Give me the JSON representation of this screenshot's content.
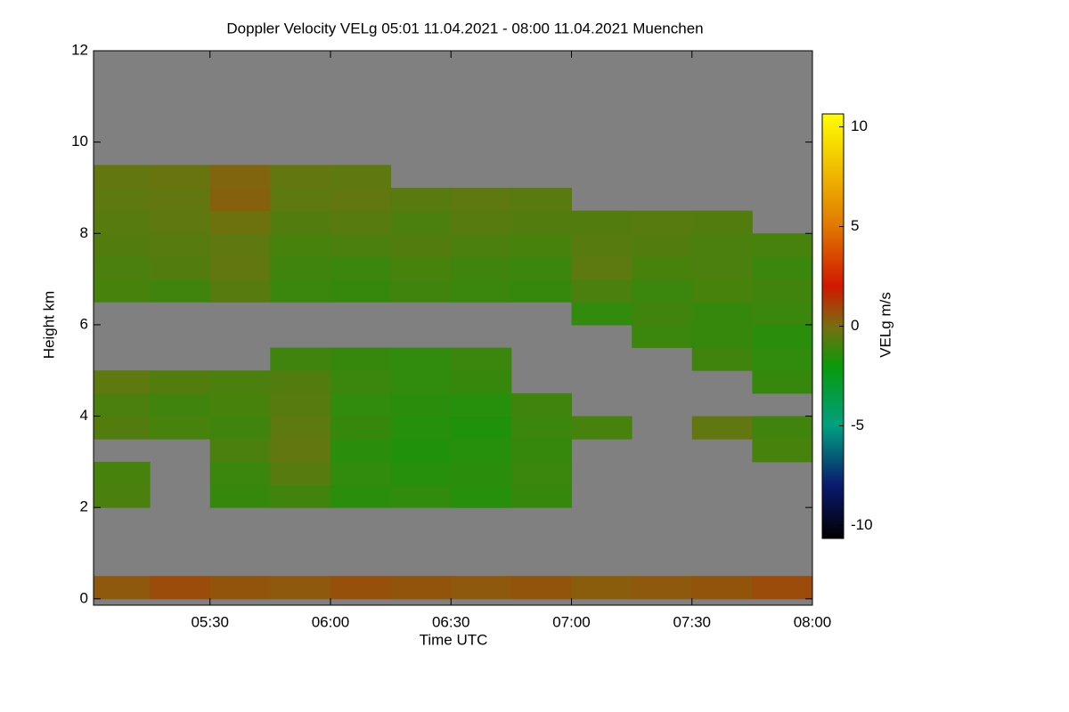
{
  "chart_data": {
    "type": "heatmap",
    "title": "Doppler Velocity VELg   05:01 11.04.2021 - 08:00 11.04.2021 Muenchen",
    "xlabel": "Time UTC",
    "ylabel": "Height km",
    "colorbar_label": "VELg m/s",
    "xlim": [
      5.0167,
      8.0
    ],
    "xticks": [
      {
        "value": 5.5,
        "label": "05:30"
      },
      {
        "value": 6.0,
        "label": "06:00"
      },
      {
        "value": 6.5,
        "label": "06:30"
      },
      {
        "value": 7.0,
        "label": "07:00"
      },
      {
        "value": 7.5,
        "label": "07:30"
      },
      {
        "value": 8.0,
        "label": "08:00"
      }
    ],
    "ylim": [
      -0.14,
      12
    ],
    "yticks": [
      0,
      2,
      4,
      6,
      8,
      10,
      12
    ],
    "zlim": [
      -10.65,
      10.65
    ],
    "zticks": [
      -10,
      -5,
      0,
      5,
      10
    ],
    "background": "#808080",
    "colorscale": [
      [
        -10.65,
        "#000000"
      ],
      [
        -8,
        "#0a1a6e"
      ],
      [
        -5,
        "#00a080"
      ],
      [
        -2,
        "#0a9a0a"
      ],
      [
        0,
        "#786e10"
      ],
      [
        2,
        "#d01800"
      ],
      [
        5,
        "#e07800"
      ],
      [
        10.65,
        "#ffff00"
      ]
    ],
    "x": [
      5.125,
      5.375,
      5.625,
      5.875,
      6.125,
      6.375,
      6.625,
      6.875,
      7.125,
      7.375,
      7.625,
      7.875
    ],
    "y": [
      0.25,
      0.75,
      1.25,
      1.75,
      2.25,
      2.75,
      3.25,
      3.75,
      4.25,
      4.75,
      5.25,
      5.75,
      6.25,
      6.75,
      7.25,
      7.75,
      8.25,
      8.75,
      9.25,
      9.75,
      10.25,
      10.75,
      11.25,
      11.75
    ],
    "z": [
      [
        0.5,
        0.8,
        0.6,
        0.5,
        0.7,
        0.6,
        0.5,
        0.6,
        0.4,
        0.5,
        0.6,
        0.8
      ],
      [
        null,
        null,
        null,
        null,
        null,
        null,
        null,
        null,
        null,
        null,
        null,
        null
      ],
      [
        null,
        null,
        null,
        null,
        null,
        null,
        null,
        null,
        null,
        null,
        null,
        null
      ],
      [
        null,
        null,
        null,
        null,
        null,
        null,
        null,
        null,
        null,
        null,
        null,
        null
      ],
      [
        -0.8,
        null,
        -1.2,
        -1.0,
        -1.4,
        -1.3,
        -1.5,
        -1.2,
        null,
        null,
        null,
        null
      ],
      [
        -0.9,
        null,
        -1.1,
        -0.6,
        -1.3,
        -1.5,
        -1.4,
        -1.1,
        null,
        null,
        null,
        null
      ],
      [
        null,
        null,
        -0.8,
        -0.4,
        -1.4,
        -1.6,
        -1.5,
        -1.2,
        null,
        null,
        null,
        -0.9
      ],
      [
        -0.7,
        -0.9,
        -1.0,
        -0.5,
        -1.2,
        -1.5,
        -1.6,
        -1.1,
        -0.9,
        null,
        -0.4,
        -1.0
      ],
      [
        -0.8,
        -1.0,
        -0.9,
        -0.6,
        -1.3,
        -1.4,
        -1.5,
        -1.0,
        null,
        null,
        null,
        null
      ],
      [
        -0.5,
        -0.7,
        -0.8,
        -0.7,
        -1.1,
        -1.3,
        -1.2,
        null,
        null,
        null,
        null,
        -1.2
      ],
      [
        null,
        null,
        null,
        -1.0,
        -1.2,
        -1.3,
        -1.1,
        null,
        null,
        null,
        -1.0,
        -1.3
      ],
      [
        null,
        null,
        null,
        null,
        null,
        null,
        null,
        null,
        null,
        -1.1,
        -1.2,
        -1.4
      ],
      [
        null,
        null,
        null,
        null,
        null,
        null,
        null,
        null,
        -1.3,
        -1.0,
        -1.2,
        -1.1
      ],
      [
        -0.9,
        -1.0,
        -0.6,
        -1.1,
        -1.2,
        -1.0,
        -1.1,
        -1.2,
        -0.8,
        -1.1,
        -0.9,
        -1.0
      ],
      [
        -0.8,
        -0.7,
        -0.4,
        -1.0,
        -1.1,
        -0.9,
        -1.0,
        -1.1,
        -0.5,
        -0.9,
        -0.8,
        -1.1
      ],
      [
        -0.7,
        -0.6,
        -0.5,
        -0.9,
        -0.8,
        -0.7,
        -0.8,
        -0.9,
        -0.6,
        -0.7,
        -0.8,
        -0.9
      ],
      [
        -0.6,
        -0.5,
        -0.2,
        -0.7,
        -0.6,
        -0.8,
        -0.6,
        -0.7,
        -0.7,
        -0.6,
        -0.7,
        null
      ],
      [
        -0.5,
        -0.4,
        0.3,
        -0.5,
        -0.4,
        -0.6,
        -0.5,
        -0.6,
        null,
        null,
        null,
        null
      ],
      [
        -0.4,
        -0.3,
        0.2,
        -0.4,
        -0.5,
        null,
        null,
        null,
        null,
        null,
        null,
        null
      ],
      [
        null,
        null,
        null,
        null,
        null,
        null,
        null,
        null,
        null,
        null,
        null,
        null
      ],
      [
        null,
        null,
        null,
        null,
        null,
        null,
        null,
        null,
        null,
        null,
        null,
        null
      ],
      [
        null,
        null,
        null,
        null,
        null,
        null,
        null,
        null,
        null,
        null,
        null,
        null
      ],
      [
        null,
        null,
        null,
        null,
        null,
        null,
        null,
        null,
        null,
        null,
        null,
        null
      ],
      [
        null,
        null,
        null,
        null,
        null,
        null,
        null,
        null,
        null,
        null,
        null,
        null
      ]
    ]
  }
}
